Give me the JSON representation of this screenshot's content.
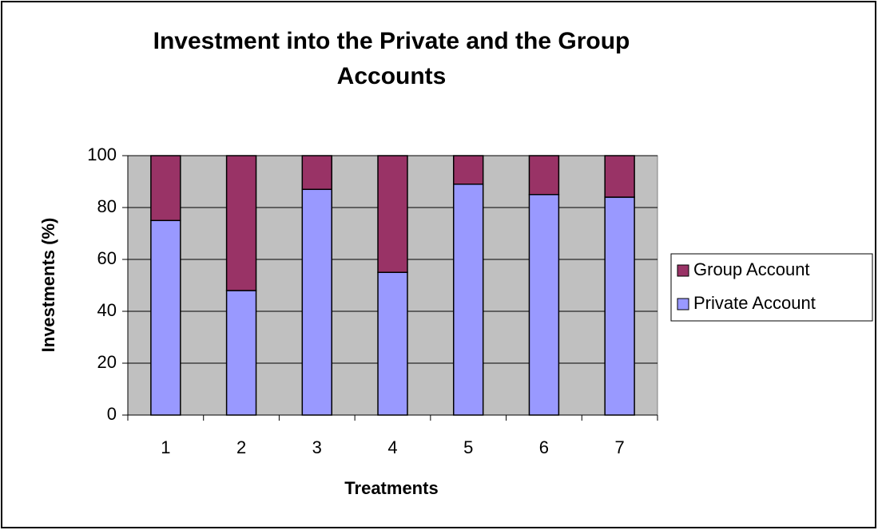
{
  "chart_data": {
    "type": "stacked_bar",
    "title": "Investment into the Private and the Group Accounts",
    "x_label": "Treatments",
    "y_label": "Investments (%)",
    "categories": [
      "1",
      "2",
      "3",
      "4",
      "5",
      "6",
      "7"
    ],
    "series": [
      {
        "name": "Private Account",
        "color": "#9999ff",
        "values": [
          75,
          48,
          87,
          55,
          89,
          85,
          84
        ]
      },
      {
        "name": "Group Account",
        "color": "#993366",
        "values": [
          25,
          52,
          13,
          45,
          11,
          15,
          16
        ]
      }
    ],
    "ylim": [
      0,
      100
    ],
    "yticks": [
      0,
      20,
      40,
      60,
      80,
      100
    ],
    "grid": true,
    "legend": "right",
    "plot_background": "#c0c0c0"
  }
}
